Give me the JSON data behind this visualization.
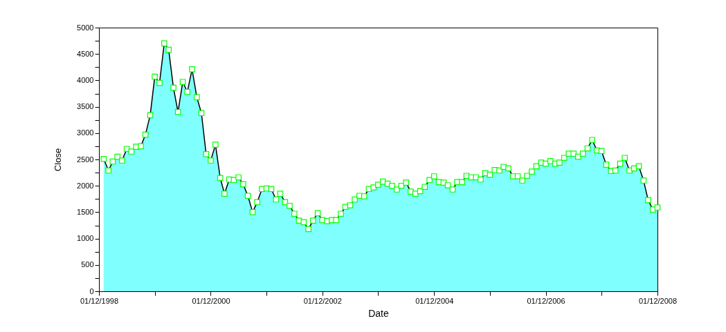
{
  "chart_data": {
    "type": "area",
    "xlabel": "Date",
    "ylabel": "Close",
    "marker": "square",
    "x": [
      "1999-01",
      "1999-02",
      "1999-03",
      "1999-04",
      "1999-05",
      "1999-06",
      "1999-07",
      "1999-08",
      "1999-09",
      "1999-10",
      "1999-11",
      "1999-12",
      "2000-01",
      "2000-02",
      "2000-03",
      "2000-04",
      "2000-05",
      "2000-06",
      "2000-07",
      "2000-08",
      "2000-09",
      "2000-10",
      "2000-11",
      "2000-12",
      "2001-01",
      "2001-02",
      "2001-03",
      "2001-04",
      "2001-05",
      "2001-06",
      "2001-07",
      "2001-08",
      "2001-09",
      "2001-10",
      "2001-11",
      "2001-12",
      "2002-01",
      "2002-02",
      "2002-03",
      "2002-04",
      "2002-05",
      "2002-06",
      "2002-07",
      "2002-08",
      "2002-09",
      "2002-10",
      "2002-11",
      "2002-12",
      "2003-01",
      "2003-02",
      "2003-03",
      "2003-04",
      "2003-05",
      "2003-06",
      "2003-07",
      "2003-08",
      "2003-09",
      "2003-10",
      "2003-11",
      "2003-12",
      "2004-01",
      "2004-02",
      "2004-03",
      "2004-04",
      "2004-05",
      "2004-06",
      "2004-07",
      "2004-08",
      "2004-09",
      "2004-10",
      "2004-11",
      "2004-12",
      "2005-01",
      "2005-02",
      "2005-03",
      "2005-04",
      "2005-05",
      "2005-06",
      "2005-07",
      "2005-08",
      "2005-09",
      "2005-10",
      "2005-11",
      "2005-12",
      "2006-01",
      "2006-02",
      "2006-03",
      "2006-04",
      "2006-05",
      "2006-06",
      "2006-07",
      "2006-08",
      "2006-09",
      "2006-10",
      "2006-11",
      "2006-12",
      "2007-01",
      "2007-02",
      "2007-03",
      "2007-04",
      "2007-05",
      "2007-06",
      "2007-07",
      "2007-08",
      "2007-09",
      "2007-10",
      "2007-11",
      "2007-12",
      "2008-01",
      "2008-02",
      "2008-03",
      "2008-04",
      "2008-05",
      "2008-06",
      "2008-07",
      "2008-08",
      "2008-09",
      "2008-10",
      "2008-11",
      "2008-12"
    ],
    "series": [
      {
        "color": "#80ffff",
        "values": [
          2510,
          2290,
          2460,
          2550,
          2480,
          2700,
          2650,
          2740,
          2750,
          2970,
          3340,
          4070,
          3950,
          4700,
          4580,
          3860,
          3400,
          3970,
          3780,
          4210,
          3680,
          3380,
          2600,
          2480,
          2780,
          2150,
          1850,
          2120,
          2110,
          2160,
          2030,
          1810,
          1500,
          1690,
          1940,
          1950,
          1940,
          1740,
          1850,
          1690,
          1620,
          1470,
          1340,
          1310,
          1180,
          1340,
          1480,
          1350,
          1330,
          1350,
          1350,
          1470,
          1600,
          1630,
          1740,
          1810,
          1800,
          1940,
          1970,
          2020,
          2080,
          2040,
          2000,
          1930,
          2000,
          2060,
          1890,
          1850,
          1900,
          1980,
          2110,
          2180,
          2070,
          2060,
          2010,
          1930,
          2070,
          2070,
          2190,
          2160,
          2160,
          2120,
          2240,
          2210,
          2300,
          2290,
          2360,
          2330,
          2180,
          2180,
          2100,
          2190,
          2270,
          2370,
          2440,
          2420,
          2470,
          2420,
          2440,
          2530,
          2610,
          2610,
          2550,
          2610,
          2710,
          2870,
          2670,
          2660,
          2400,
          2280,
          2290,
          2420,
          2530,
          2290,
          2330,
          2370,
          2100,
          1730,
          1550,
          1590
        ]
      }
    ],
    "xlim": [
      "1998-12-01",
      "2008-12-01"
    ],
    "xticks": [
      {
        "value": "1998-12-01",
        "label": "01/12/1998"
      },
      {
        "value": "1999-12-01",
        "label": null
      },
      {
        "value": "2000-12-01",
        "label": "01/12/2000"
      },
      {
        "value": "2001-12-01",
        "label": null
      },
      {
        "value": "2002-12-01",
        "label": "01/12/2002"
      },
      {
        "value": "2003-12-01",
        "label": null
      },
      {
        "value": "2004-12-01",
        "label": "01/12/2004"
      },
      {
        "value": "2005-12-01",
        "label": null
      },
      {
        "value": "2006-12-01",
        "label": "01/12/2006"
      },
      {
        "value": "2007-12-01",
        "label": null
      },
      {
        "value": "2008-12-01",
        "label": "01/12/2008"
      }
    ],
    "ylim": [
      0,
      5000
    ],
    "yticks": [
      0,
      {
        "value": 250,
        "label": null
      },
      500,
      {
        "value": 750,
        "label": null
      },
      1000,
      {
        "value": 1250,
        "label": null
      },
      1500,
      {
        "value": 1750,
        "label": null
      },
      2000,
      {
        "value": 2250,
        "label": null
      },
      2500,
      {
        "value": 2750,
        "label": null
      },
      3000,
      {
        "value": 3250,
        "label": null
      },
      3500,
      {
        "value": 3750,
        "label": null
      },
      4000,
      {
        "value": 4250,
        "label": null
      },
      4500,
      {
        "value": 4750,
        "label": null
      },
      5000
    ],
    "grid": false
  }
}
